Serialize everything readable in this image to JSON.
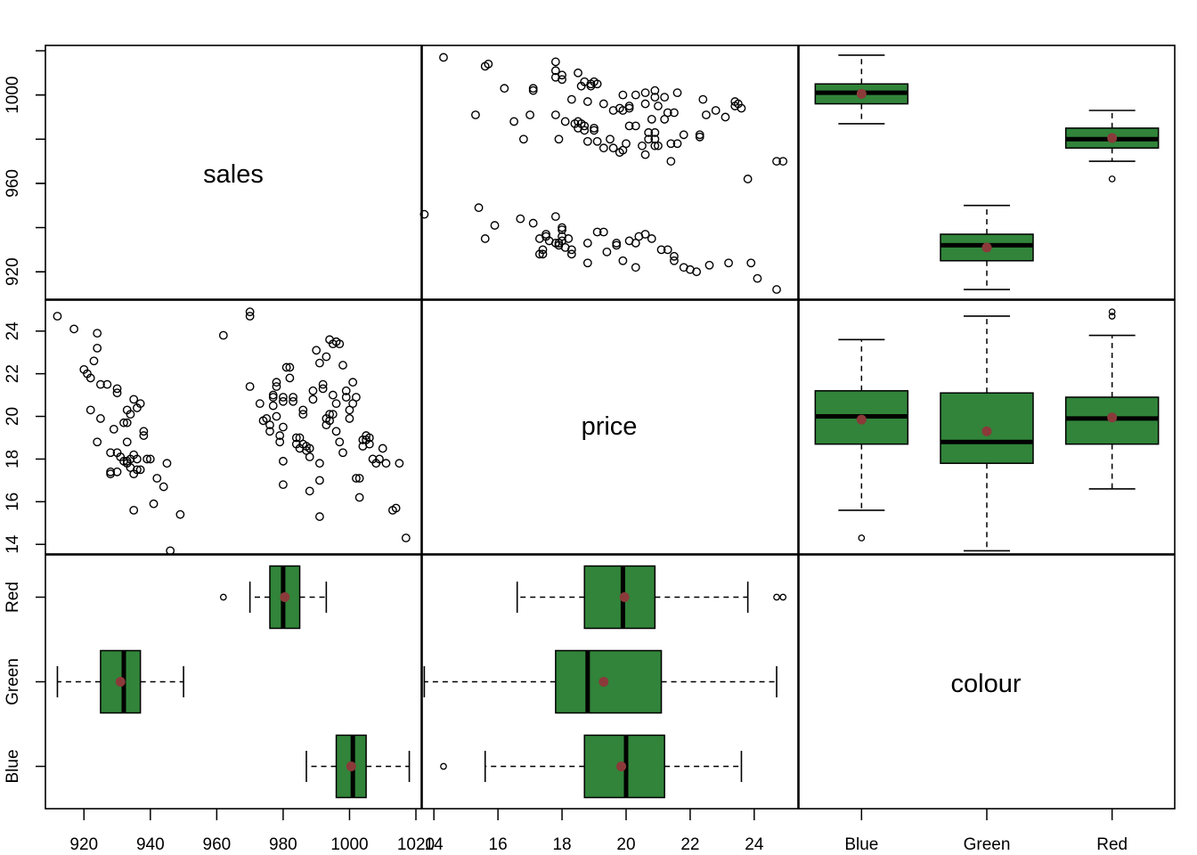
{
  "chart_data": {
    "type": "scatter-matrix",
    "variables": [
      {
        "key": "sales",
        "label": "sales",
        "range": [
          910,
          1020
        ],
        "ticks": [
          920,
          940,
          960,
          980,
          1000,
          1020
        ]
      },
      {
        "key": "price",
        "label": "price",
        "range": [
          13.8,
          25.2
        ],
        "ticks": [
          14,
          16,
          18,
          20,
          22,
          24
        ]
      },
      {
        "key": "colour",
        "label": "colour",
        "categories": [
          "Blue",
          "Green",
          "Red"
        ]
      }
    ],
    "colors": {
      "box_fill": "#31843a",
      "mean_point": "#8b3a3a",
      "stroke": "#000000"
    },
    "boxplots": {
      "sales": {
        "Blue": {
          "whisker_low": 987,
          "q1": 996,
          "median": 1001,
          "q3": 1005,
          "whisker_high": 1018,
          "mean": 1000.5,
          "outliers": []
        },
        "Green": {
          "whisker_low": 912,
          "q1": 925,
          "median": 932,
          "q3": 937,
          "whisker_high": 950,
          "mean": 931,
          "outliers": []
        },
        "Red": {
          "whisker_low": 970,
          "q1": 976,
          "median": 980,
          "q3": 985,
          "whisker_high": 993,
          "mean": 980.5,
          "outliers": [
            962
          ]
        }
      },
      "price": {
        "Blue": {
          "whisker_low": 15.6,
          "q1": 18.7,
          "median": 20.0,
          "q3": 21.2,
          "whisker_high": 23.6,
          "mean": 19.85,
          "outliers": [
            14.3
          ]
        },
        "Green": {
          "whisker_low": 13.7,
          "q1": 17.8,
          "median": 18.8,
          "q3": 21.1,
          "whisker_high": 24.7,
          "mean": 19.3,
          "outliers": []
        },
        "Red": {
          "whisker_low": 16.6,
          "q1": 18.7,
          "median": 19.9,
          "q3": 20.9,
          "whisker_high": 23.8,
          "mean": 19.95,
          "outliers": [
            24.7,
            24.9
          ]
        }
      }
    },
    "scatter_points": [
      [
        912,
        24.7
      ],
      [
        917,
        24.1
      ],
      [
        920,
        22.2
      ],
      [
        921,
        22.0
      ],
      [
        922,
        21.8
      ],
      [
        923,
        22.6
      ],
      [
        925,
        21.5
      ],
      [
        927,
        21.5
      ],
      [
        930,
        21.3
      ],
      [
        930,
        21.1
      ],
      [
        924,
        23.2
      ],
      [
        924,
        23.9
      ],
      [
        922,
        20.3
      ],
      [
        925,
        19.9
      ],
      [
        929,
        19.4
      ],
      [
        932,
        19.7
      ],
      [
        933,
        20.3
      ],
      [
        935,
        20.8
      ],
      [
        934,
        20.1
      ],
      [
        936,
        20.4
      ],
      [
        937,
        20.6
      ],
      [
        933,
        19.7
      ],
      [
        938,
        19.3
      ],
      [
        938,
        19.1
      ],
      [
        924,
        18.8
      ],
      [
        928,
        18.3
      ],
      [
        930,
        18.3
      ],
      [
        931,
        18.1
      ],
      [
        933,
        17.9
      ],
      [
        934,
        18.0
      ],
      [
        932,
        17.9
      ],
      [
        935,
        18.2
      ],
      [
        936,
        18.0
      ],
      [
        934,
        17.6
      ],
      [
        933,
        17.8
      ],
      [
        936,
        17.5
      ],
      [
        935,
        17.3
      ],
      [
        937,
        17.5
      ],
      [
        928,
        17.4
      ],
      [
        928,
        17.3
      ],
      [
        930,
        17.4
      ],
      [
        933,
        18.8
      ],
      [
        939,
        18.0
      ],
      [
        940,
        18.0
      ],
      [
        942,
        17.1
      ],
      [
        944,
        16.7
      ],
      [
        945,
        17.8
      ],
      [
        935,
        15.6
      ],
      [
        941,
        15.9
      ],
      [
        946,
        13.7
      ],
      [
        949,
        15.4
      ],
      [
        962,
        23.8
      ],
      [
        970,
        24.9
      ],
      [
        970,
        24.7
      ],
      [
        970,
        21.4
      ],
      [
        973,
        20.6
      ],
      [
        974,
        19.8
      ],
      [
        975,
        19.9
      ],
      [
        976,
        19.6
      ],
      [
        976,
        19.3
      ],
      [
        977,
        20.5
      ],
      [
        977,
        20.9
      ],
      [
        977,
        21.0
      ],
      [
        978,
        20.0
      ],
      [
        978,
        21.4
      ],
      [
        978,
        21.6
      ],
      [
        979,
        19.1
      ],
      [
        979,
        18.8
      ],
      [
        980,
        20.7
      ],
      [
        980,
        20.9
      ],
      [
        980,
        19.5
      ],
      [
        981,
        22.3
      ],
      [
        982,
        22.3
      ],
      [
        982,
        21.8
      ],
      [
        983,
        20.9
      ],
      [
        983,
        20.7
      ],
      [
        984,
        19.0
      ],
      [
        984,
        18.7
      ],
      [
        985,
        19.0
      ],
      [
        985,
        18.5
      ],
      [
        986,
        20.3
      ],
      [
        986,
        20.1
      ],
      [
        986,
        18.7
      ],
      [
        987,
        18.4
      ],
      [
        987,
        18.6
      ],
      [
        988,
        18.5
      ],
      [
        988,
        18.1
      ],
      [
        989,
        20.8
      ],
      [
        989,
        21.2
      ],
      [
        990,
        23.1
      ],
      [
        991,
        22.5
      ],
      [
        992,
        21.5
      ],
      [
        992,
        21.3
      ],
      [
        993,
        19.9
      ],
      [
        993,
        19.6
      ],
      [
        994,
        19.8
      ],
      [
        994,
        20.1
      ],
      [
        995,
        20.1
      ],
      [
        996,
        20.6
      ],
      [
        996,
        19.3
      ],
      [
        997,
        18.8
      ],
      [
        998,
        18.3
      ],
      [
        999,
        21.2
      ],
      [
        999,
        20.9
      ],
      [
        1000,
        20.3
      ],
      [
        1000,
        19.9
      ],
      [
        1001,
        20.6
      ],
      [
        1001,
        21.6
      ],
      [
        1002,
        20.9
      ],
      [
        1002,
        17.1
      ],
      [
        1003,
        17.1
      ],
      [
        1003,
        16.2
      ],
      [
        1004,
        18.6
      ],
      [
        1004,
        18.9
      ],
      [
        1005,
        19.1
      ],
      [
        1005,
        18.9
      ],
      [
        1006,
        18.7
      ],
      [
        1006,
        19.0
      ],
      [
        1007,
        18.0
      ],
      [
        1008,
        17.8
      ],
      [
        1009,
        18.0
      ],
      [
        1010,
        18.5
      ],
      [
        1011,
        17.8
      ],
      [
        1013,
        15.6
      ],
      [
        1014,
        15.7
      ],
      [
        1015,
        17.8
      ],
      [
        1017,
        14.3
      ],
      [
        994,
        23.6
      ],
      [
        995,
        23.4
      ],
      [
        996,
        23.5
      ],
      [
        997,
        23.4
      ],
      [
        998,
        22.4
      ],
      [
        993,
        22.8
      ],
      [
        991,
        17.8
      ],
      [
        991,
        17.0
      ],
      [
        988,
        16.5
      ],
      [
        980,
        16.8
      ],
      [
        980,
        17.9
      ],
      [
        991,
        15.3
      ],
      [
        995,
        21.0
      ]
    ]
  },
  "labels": {
    "diag_sales": "sales",
    "diag_price": "price",
    "diag_colour": "colour",
    "tick_sales_left": [
      "920",
      "960",
      "1000"
    ],
    "tick_price_left": [
      "14",
      "16",
      "18",
      "20",
      "22",
      "24"
    ],
    "tick_colour_left": [
      "Blue",
      "Green",
      "Red"
    ],
    "tick_sales_bottom": [
      "920",
      "940",
      "960",
      "980",
      "1000",
      "1020"
    ],
    "tick_price_bottom": [
      "14",
      "16",
      "18",
      "20",
      "22",
      "24"
    ],
    "tick_colour_bottom": [
      "Blue",
      "Green",
      "Red"
    ]
  }
}
